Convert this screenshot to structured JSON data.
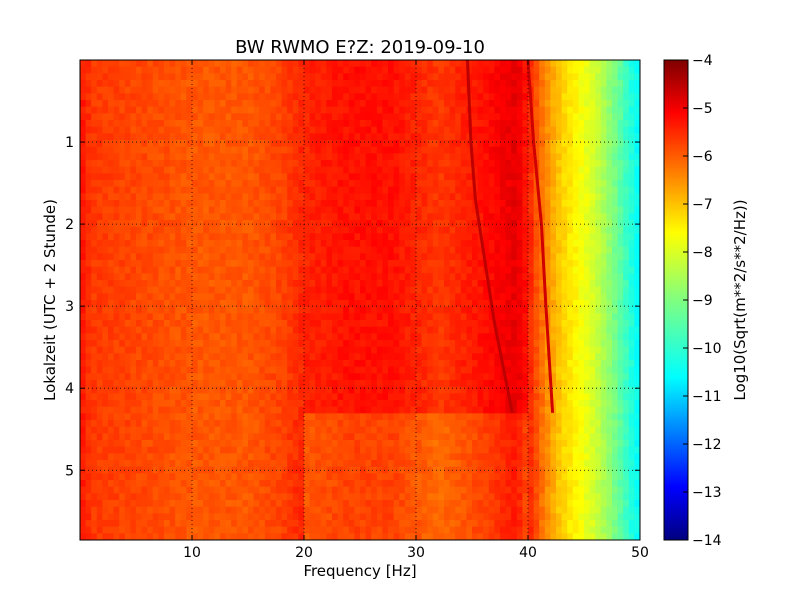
{
  "chart_data": {
    "type": "heatmap",
    "title": "BW RWMO E?Z: 2019-09-10",
    "xlabel": "Frequency [Hz]",
    "ylabel": "Lokalzeit (UTC + 2 Stunde)",
    "xlim": [
      0,
      50
    ],
    "ylim": [
      5.85,
      0.0
    ],
    "y_inverted": true,
    "grid": true,
    "x_ticks": [
      10,
      20,
      30,
      40,
      50
    ],
    "x_tick_labels": [
      "10",
      "20",
      "30",
      "40",
      "50"
    ],
    "y_ticks": [
      1,
      2,
      3,
      4,
      5
    ],
    "y_tick_labels": [
      "1",
      "2",
      "3",
      "4",
      "5"
    ],
    "colormap": "jet",
    "colorbar": {
      "label": "Log10(Sqrt(m**2/s**2/Hz))",
      "range": [
        -14,
        -4
      ],
      "ticks": [
        -4,
        -5,
        -6,
        -7,
        -8,
        -9,
        -10,
        -11,
        -12,
        -13,
        -14
      ],
      "tick_labels": [
        "−4",
        "−5",
        "−6",
        "−7",
        "−8",
        "−9",
        "−10",
        "−11",
        "−12",
        "−13",
        "−14"
      ]
    },
    "spectrum_profile": {
      "frequency_hz": [
        0,
        1,
        10,
        15,
        18,
        20,
        24,
        28,
        32,
        36,
        39,
        40,
        41,
        42,
        43,
        44,
        45,
        46,
        47,
        48,
        49,
        50
      ],
      "log10_amplitude": [
        -5.4,
        -5.8,
        -6.1,
        -6.1,
        -5.9,
        -5.6,
        -5.4,
        -5.4,
        -5.8,
        -5.4,
        -5.0,
        -5.5,
        -6.2,
        -6.8,
        -7.3,
        -7.6,
        -7.9,
        -8.2,
        -8.7,
        -9.2,
        -9.8,
        -10.3
      ]
    },
    "annotations": [
      {
        "name": "drifting-tone-1",
        "points_hz_hour": [
          [
            34.6,
            0.0
          ],
          [
            34.9,
            1.0
          ],
          [
            35.3,
            1.7
          ],
          [
            37.0,
            3.2
          ],
          [
            38.6,
            4.3
          ]
        ],
        "log10_amplitude": -4.6
      },
      {
        "name": "drifting-tone-2",
        "points_hz_hour": [
          [
            40.0,
            0.0
          ],
          [
            40.5,
            1.0
          ],
          [
            41.2,
            2.0
          ],
          [
            41.6,
            3.0
          ],
          [
            42.2,
            4.3
          ]
        ],
        "log10_amplitude": -4.8
      },
      {
        "name": "noise-transition",
        "time_hour": 4.3
      }
    ]
  }
}
